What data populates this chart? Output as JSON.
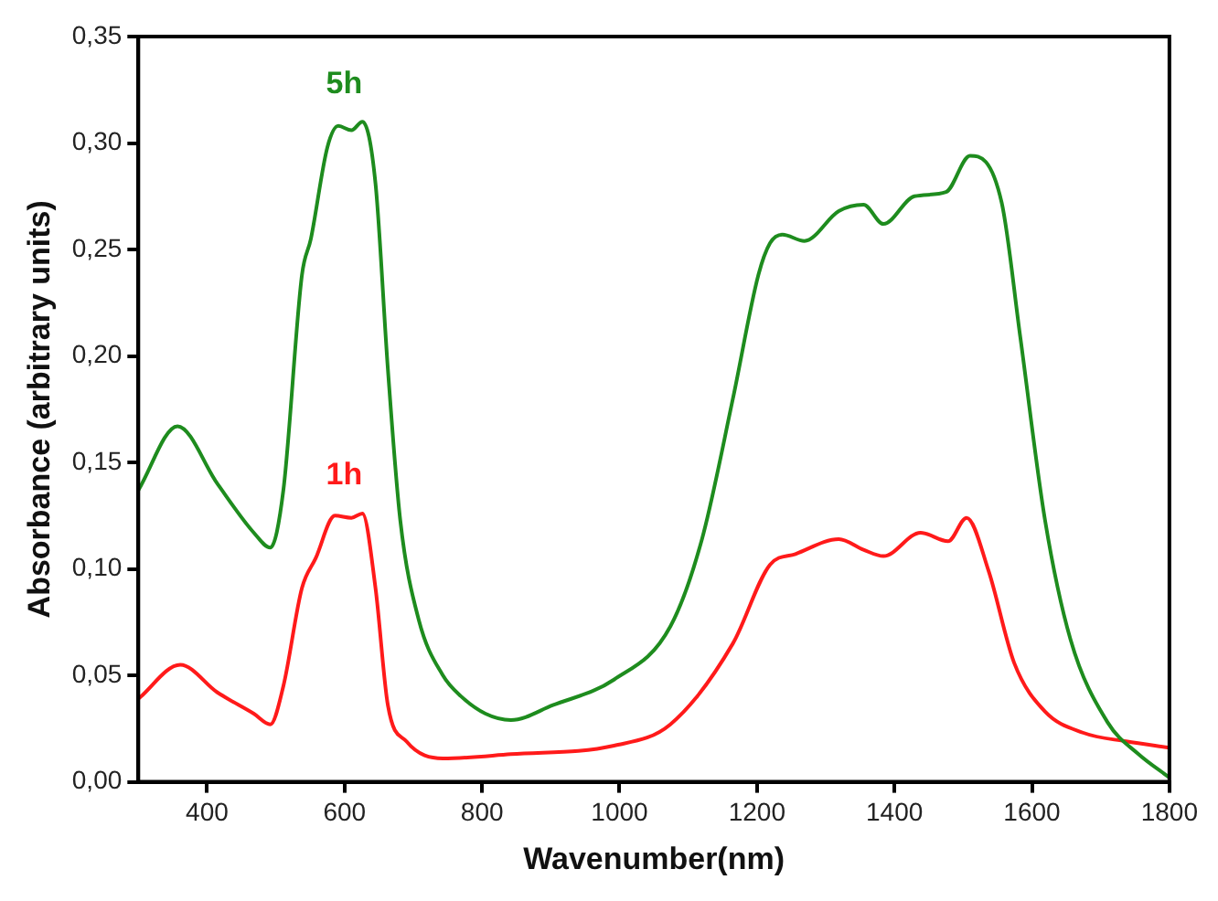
{
  "chart_data": {
    "type": "line",
    "xlabel": "Wavenumber(nm)",
    "ylabel": "Absorbance (arbitrary units)",
    "xlim": [
      300,
      1800
    ],
    "xticks": [
      400,
      600,
      800,
      1000,
      1200,
      1400,
      1600,
      1800
    ],
    "ylim": [
      0,
      0.35
    ],
    "yticks": [
      {
        "value": 0,
        "label": "0,00"
      },
      {
        "value": 0.05,
        "label": "0,05"
      },
      {
        "value": 0.1,
        "label": "0,10"
      },
      {
        "value": 0.15,
        "label": "0,15"
      },
      {
        "value": 0.2,
        "label": "0,20"
      },
      {
        "value": 0.25,
        "label": "0,25"
      },
      {
        "value": 0.3,
        "label": "0,30"
      },
      {
        "value": 0.35,
        "label": "0,35"
      }
    ],
    "grid": false,
    "legend": false,
    "marker": "none",
    "line_style": "solid",
    "series": [
      {
        "name": "5h",
        "color": "#1e8c1e",
        "x": [
          300,
          357,
          415,
          468,
          492,
          511,
          538,
          551,
          575,
          591,
          610,
          626,
          645,
          663,
          681,
          708,
          743,
          770,
          805,
          842,
          903,
          992,
          1074,
          1120,
          1165,
          1202,
          1219,
          1237,
          1269,
          1319,
          1355,
          1384,
          1429,
          1475,
          1510,
          1556,
          1583,
          1619,
          1656,
          1710,
          1755,
          1800
        ],
        "values": [
          0.137,
          0.167,
          0.14,
          0.117,
          0.11,
          0.137,
          0.238,
          0.255,
          0.298,
          0.308,
          0.306,
          0.31,
          0.281,
          0.194,
          0.123,
          0.076,
          0.05,
          0.04,
          0.032,
          0.029,
          0.036,
          0.048,
          0.073,
          0.114,
          0.18,
          0.238,
          0.253,
          0.257,
          0.254,
          0.268,
          0.271,
          0.262,
          0.275,
          0.277,
          0.294,
          0.272,
          0.209,
          0.123,
          0.067,
          0.028,
          0.013,
          0.002
        ]
      },
      {
        "name": "1h",
        "color": "#ff1a1a",
        "x": [
          300,
          361,
          415,
          468,
          492,
          511,
          538,
          558,
          586,
          610,
          626,
          645,
          663,
          690,
          743,
          842,
          992,
          1074,
          1165,
          1219,
          1256,
          1319,
          1355,
          1384,
          1438,
          1478,
          1505,
          1537,
          1574,
          1619,
          1675,
          1737,
          1800
        ],
        "values": [
          0.039,
          0.055,
          0.042,
          0.032,
          0.027,
          0.045,
          0.091,
          0.105,
          0.125,
          0.124,
          0.126,
          0.091,
          0.036,
          0.019,
          0.011,
          0.013,
          0.017,
          0.027,
          0.065,
          0.102,
          0.107,
          0.114,
          0.109,
          0.106,
          0.117,
          0.113,
          0.124,
          0.099,
          0.056,
          0.033,
          0.023,
          0.019,
          0.016
        ]
      }
    ]
  }
}
